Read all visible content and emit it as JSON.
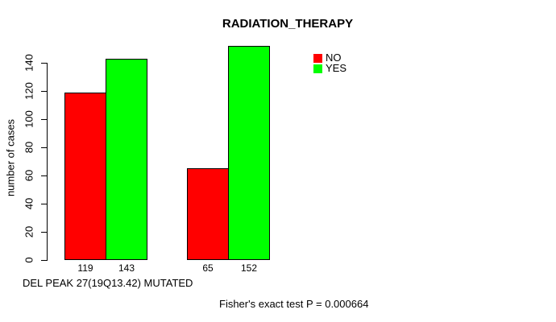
{
  "chart_data": {
    "type": "bar",
    "title": "RADIATION_THERAPY",
    "ylabel": "number of cases",
    "xlabel": "DEL PEAK 27(19Q13.42) MUTATED",
    "ylim": [
      0,
      140
    ],
    "yticks": [
      0,
      20,
      40,
      60,
      80,
      100,
      120,
      140
    ],
    "grid": false,
    "legend_position": "top-right",
    "series": [
      {
        "name": "NO",
        "color": "#ff0000",
        "values": [
          119,
          65
        ]
      },
      {
        "name": "YES",
        "color": "#00ff00",
        "values": [
          143,
          152
        ]
      }
    ],
    "value_labels": [
      119,
      143,
      65,
      152
    ],
    "annotation": "Fisher's exact test P = 0.000664",
    "background": "#ffffff",
    "axis_color": "#000000"
  }
}
